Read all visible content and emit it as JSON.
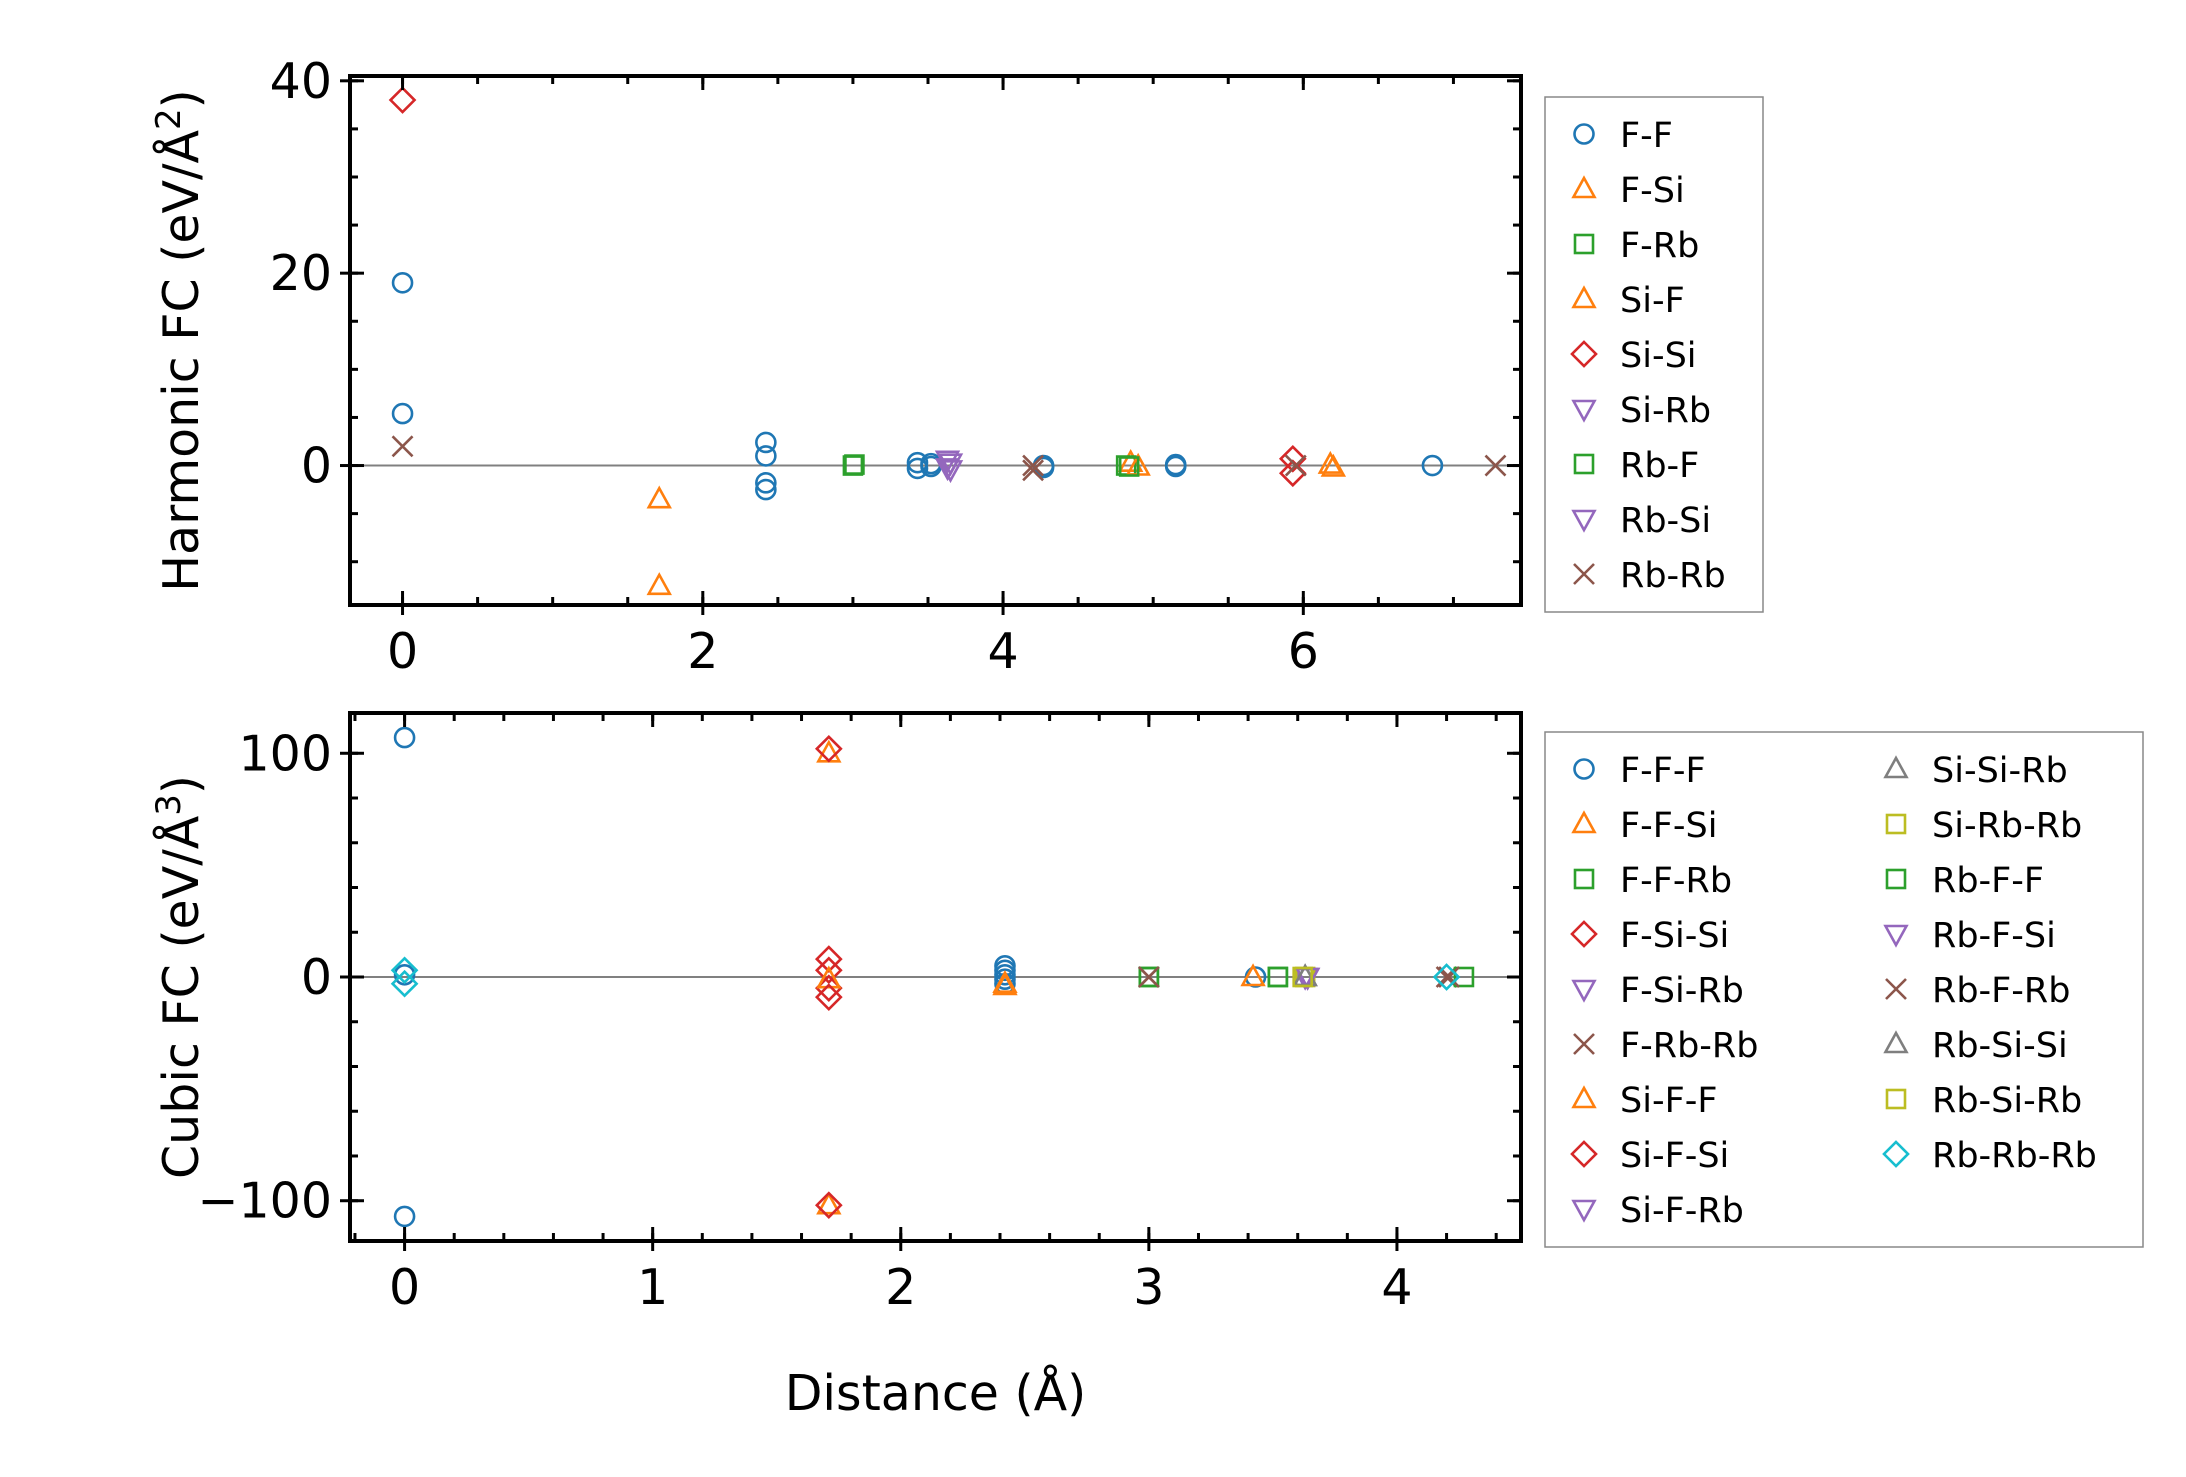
{
  "chart_data": [
    {
      "type": "scatter",
      "ylabel": "Harmonic FC (eV/Å",
      "ylabel_sup": "2",
      "ylabel_end": ")",
      "xlim": [
        -0.35,
        7.45
      ],
      "ylim": [
        -14.5,
        40.5
      ],
      "xticks": [
        0,
        2,
        4,
        6
      ],
      "xtick_labels": [
        "0",
        "2",
        "4",
        "6"
      ],
      "yticks": [
        0,
        20,
        40
      ],
      "ytick_labels": [
        "0",
        "20",
        "40"
      ],
      "x_minor_step": 0.5,
      "y_minor_step": 5,
      "zero_line": true,
      "legend": "outside-right",
      "legend_columns": 1,
      "series": [
        {
          "name": "F-F",
          "marker": "circle",
          "color": "#1f77b4",
          "points": [
            [
              0,
              19
            ],
            [
              0,
              5.4
            ],
            [
              2.42,
              2.4
            ],
            [
              2.42,
              1
            ],
            [
              2.42,
              -1.8
            ],
            [
              2.42,
              -2.5
            ],
            [
              3.43,
              0.3
            ],
            [
              3.43,
              -0.3
            ],
            [
              3.52,
              0.2
            ],
            [
              3.52,
              -0.1
            ],
            [
              4.27,
              0
            ],
            [
              4.27,
              -0.2
            ],
            [
              5.15,
              0.1
            ],
            [
              5.15,
              -0.1
            ],
            [
              6.86,
              0
            ]
          ]
        },
        {
          "name": "F-Si",
          "marker": "triangle-up",
          "color": "#ff7f0e",
          "points": [
            [
              1.71,
              -12.5
            ],
            [
              4.85,
              0.3
            ],
            [
              6.18,
              0.1
            ]
          ]
        },
        {
          "name": "F-Rb",
          "marker": "square",
          "color": "#2ca02c",
          "points": [
            [
              3.0,
              0
            ],
            [
              4.82,
              0
            ]
          ]
        },
        {
          "name": "Si-F",
          "marker": "triangle-up",
          "color": "#ff7f0e",
          "points": [
            [
              1.71,
              -3.5
            ],
            [
              4.9,
              -0.1
            ],
            [
              6.2,
              -0.2
            ]
          ]
        },
        {
          "name": "Si-Si",
          "marker": "diamond",
          "color": "#d62728",
          "points": [
            [
              0,
              38
            ],
            [
              5.93,
              0.7
            ],
            [
              5.93,
              -0.8
            ]
          ]
        },
        {
          "name": "Si-Rb",
          "marker": "triangle-down",
          "color": "#9467bd",
          "points": [
            [
              3.63,
              0.6
            ],
            [
              3.63,
              -0.2
            ]
          ]
        },
        {
          "name": "Rb-F",
          "marker": "square",
          "color": "#2ca02c",
          "points": [
            [
              3.01,
              0.1
            ],
            [
              4.84,
              -0.1
            ]
          ]
        },
        {
          "name": "Rb-Si",
          "marker": "triangle-down",
          "color": "#9467bd",
          "points": [
            [
              3.65,
              0.3
            ],
            [
              3.65,
              -0.4
            ]
          ]
        },
        {
          "name": "Rb-Rb",
          "marker": "x",
          "color": "#8c564b",
          "points": [
            [
              0,
              2
            ],
            [
              4.2,
              0
            ],
            [
              4.2,
              -0.5
            ],
            [
              5.95,
              0
            ],
            [
              7.28,
              0
            ]
          ]
        }
      ]
    },
    {
      "type": "scatter",
      "xlabel": "Distance (Å)",
      "ylabel": "Cubic FC (eV/Å",
      "ylabel_sup": "3",
      "ylabel_end": ")",
      "xlim": [
        -0.22,
        4.5
      ],
      "ylim": [
        -118,
        118
      ],
      "xticks": [
        0,
        1,
        2,
        3,
        4
      ],
      "xtick_labels": [
        "0",
        "1",
        "2",
        "3",
        "4"
      ],
      "yticks": [
        -100,
        0,
        100
      ],
      "ytick_labels": [
        "−100",
        "0",
        "100"
      ],
      "x_minor_step": 0.2,
      "y_minor_step": 20,
      "zero_line": true,
      "legend": "outside-right",
      "legend_columns": 2,
      "series": [
        {
          "name": "F-F-F",
          "marker": "circle",
          "color": "#1f77b4",
          "points": [
            [
              0,
              107
            ],
            [
              0,
              -107
            ],
            [
              0,
              1
            ],
            [
              2.42,
              5
            ],
            [
              2.42,
              3
            ],
            [
              2.42,
              1
            ],
            [
              2.42,
              -1
            ],
            [
              2.42,
              -3
            ],
            [
              3.43,
              0
            ]
          ]
        },
        {
          "name": "F-F-Si",
          "marker": "triangle-up",
          "color": "#ff7f0e",
          "points": [
            [
              1.71,
              100
            ],
            [
              1.71,
              -102
            ],
            [
              2.42,
              -4
            ],
            [
              3.42,
              0
            ]
          ]
        },
        {
          "name": "F-F-Rb",
          "marker": "square",
          "color": "#2ca02c",
          "points": [
            [
              3.0,
              0
            ],
            [
              3.52,
              0
            ]
          ]
        },
        {
          "name": "F-Si-Si",
          "marker": "diamond",
          "color": "#d62728",
          "points": [
            [
              1.71,
              8
            ],
            [
              1.71,
              3
            ],
            [
              1.71,
              -5
            ]
          ]
        },
        {
          "name": "F-Si-Rb",
          "marker": "triangle-down",
          "color": "#9467bd",
          "points": [
            [
              3.63,
              0
            ]
          ]
        },
        {
          "name": "F-Rb-Rb",
          "marker": "x",
          "color": "#8c564b",
          "points": [
            [
              3.0,
              0
            ],
            [
              4.2,
              0
            ]
          ]
        },
        {
          "name": "Si-F-F",
          "marker": "triangle-up",
          "color": "#ff7f0e",
          "points": [
            [
              1.71,
              -1
            ],
            [
              2.42,
              -3
            ]
          ]
        },
        {
          "name": "Si-F-Si",
          "marker": "diamond",
          "color": "#d62728",
          "points": [
            [
              1.71,
              102
            ],
            [
              1.71,
              -102
            ],
            [
              1.71,
              -9
            ]
          ]
        },
        {
          "name": "Si-F-Rb",
          "marker": "triangle-down",
          "color": "#9467bd",
          "points": [
            [
              3.64,
              0
            ]
          ]
        },
        {
          "name": "Si-Si-Rb",
          "marker": "triangle-up",
          "color": "#7f7f7f",
          "points": [
            [
              3.63,
              0
            ]
          ]
        },
        {
          "name": "Si-Rb-Rb",
          "marker": "square",
          "color": "#bcbd22",
          "points": [
            [
              3.63,
              0
            ]
          ]
        },
        {
          "name": "Rb-F-F",
          "marker": "square",
          "color": "#2ca02c",
          "points": [
            [
              3.0,
              0
            ],
            [
              3.52,
              0
            ],
            [
              4.27,
              0
            ]
          ]
        },
        {
          "name": "Rb-F-Si",
          "marker": "triangle-down",
          "color": "#9467bd",
          "points": [
            [
              3.64,
              0
            ]
          ]
        },
        {
          "name": "Rb-F-Rb",
          "marker": "x",
          "color": "#8c564b",
          "points": [
            [
              3.0,
              0
            ],
            [
              4.21,
              0
            ]
          ]
        },
        {
          "name": "Rb-Si-Si",
          "marker": "triangle-up",
          "color": "#7f7f7f",
          "points": [
            [
              3.63,
              0
            ]
          ]
        },
        {
          "name": "Rb-Si-Rb",
          "marker": "square",
          "color": "#bcbd22",
          "points": [
            [
              3.62,
              0
            ]
          ]
        },
        {
          "name": "Rb-Rb-Rb",
          "marker": "diamond",
          "color": "#17becf",
          "points": [
            [
              0,
              3
            ],
            [
              0,
              -3
            ],
            [
              4.2,
              0
            ]
          ]
        }
      ]
    }
  ]
}
